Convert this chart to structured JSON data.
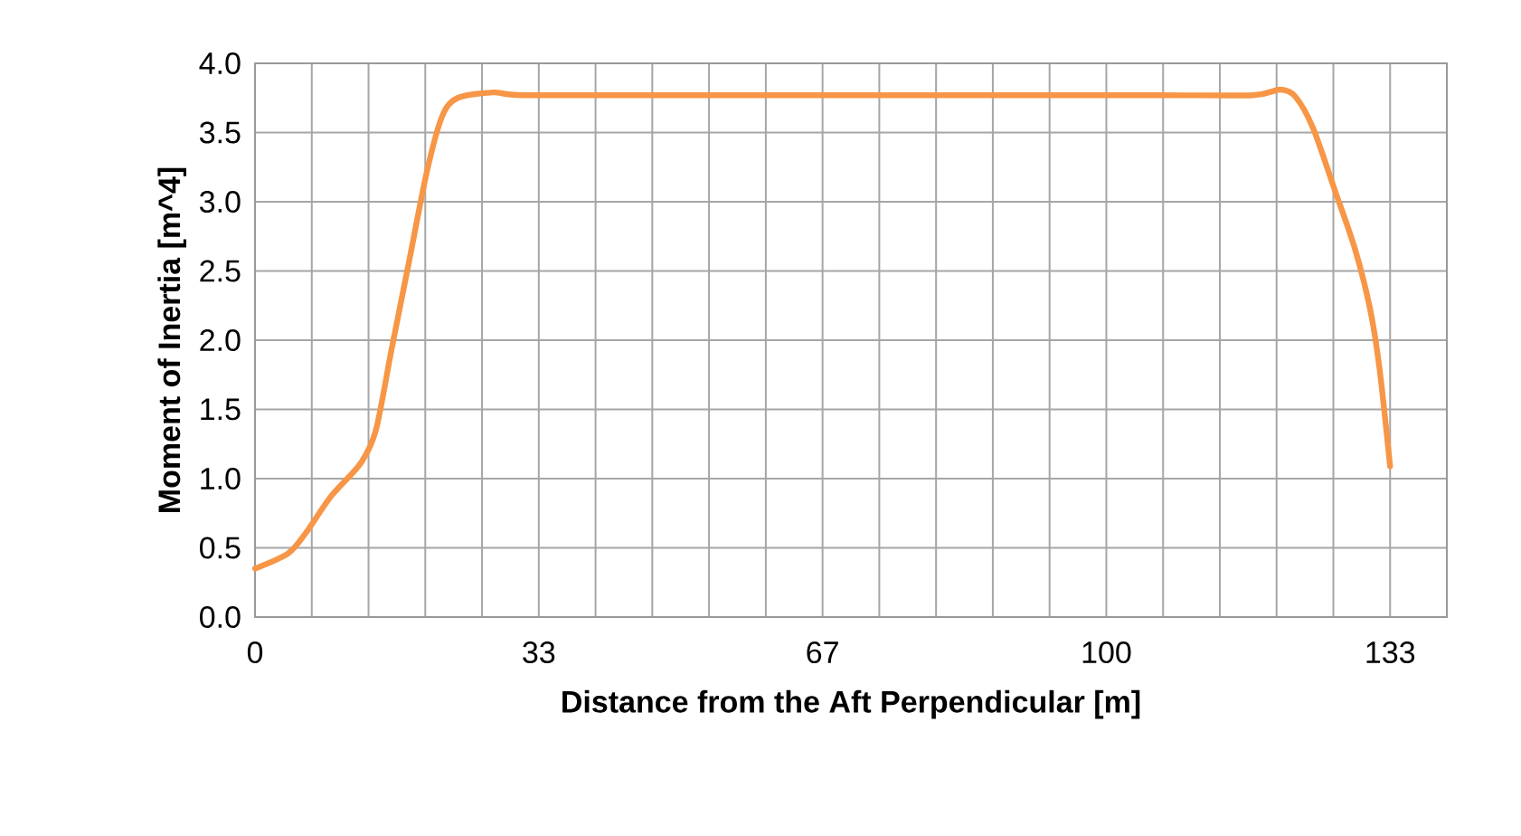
{
  "chart_data": {
    "type": "line",
    "xlabel": "Distance from the Aft Perpendicular [m]",
    "ylabel": "Moment of Inertia [m^4]",
    "series": [
      {
        "color": "#f79646",
        "x": [
          0,
          3.9,
          6.0,
          8.9,
          12.4,
          14.2,
          16.0,
          18.1,
          20.2,
          22.0,
          23.8,
          28.0,
          31.6,
          50,
          80,
          106.0,
          117.2,
          120.4,
          122.2,
          124.3,
          126.8,
          129.2,
          131.0,
          132.1,
          133.33
        ],
        "values": [
          0.35,
          0.46,
          0.61,
          0.87,
          1.11,
          1.35,
          1.92,
          2.57,
          3.22,
          3.62,
          3.75,
          3.79,
          3.77,
          3.77,
          3.77,
          3.77,
          3.77,
          3.81,
          3.76,
          3.53,
          3.09,
          2.66,
          2.22,
          1.79,
          1.09
        ]
      }
    ],
    "xlim": [
      0,
      140
    ],
    "xticks": [
      0,
      {
        "value": 6.667,
        "label": null
      },
      {
        "value": 13.333,
        "label": null
      },
      {
        "value": 20,
        "label": null
      },
      {
        "value": 26.667,
        "label": null
      },
      {
        "value": 33.333,
        "label": "33"
      },
      {
        "value": 40,
        "label": null
      },
      {
        "value": 46.667,
        "label": null
      },
      {
        "value": 53.333,
        "label": null
      },
      {
        "value": 60,
        "label": null
      },
      {
        "value": 66.667,
        "label": "67"
      },
      {
        "value": 73.333,
        "label": null
      },
      {
        "value": 80,
        "label": null
      },
      {
        "value": 86.667,
        "label": null
      },
      {
        "value": 93.333,
        "label": null
      },
      100,
      {
        "value": 106.667,
        "label": null
      },
      {
        "value": 113.333,
        "label": null
      },
      {
        "value": 120,
        "label": null
      },
      {
        "value": 126.667,
        "label": null
      },
      {
        "value": 133.333,
        "label": "133"
      },
      {
        "value": 140,
        "label": null
      }
    ],
    "ylim": [
      0,
      4
    ],
    "yticks": [
      {
        "value": 0,
        "label": "0.0"
      },
      {
        "value": 0.5,
        "label": "0.5"
      },
      {
        "value": 1,
        "label": "1.0"
      },
      {
        "value": 1.5,
        "label": "1.5"
      },
      {
        "value": 2,
        "label": "2.0"
      },
      {
        "value": 2.5,
        "label": "2.5"
      },
      {
        "value": 3,
        "label": "3.0"
      },
      {
        "value": 3.5,
        "label": "3.5"
      },
      {
        "value": 4,
        "label": "4.0"
      }
    ],
    "grid": true
  }
}
